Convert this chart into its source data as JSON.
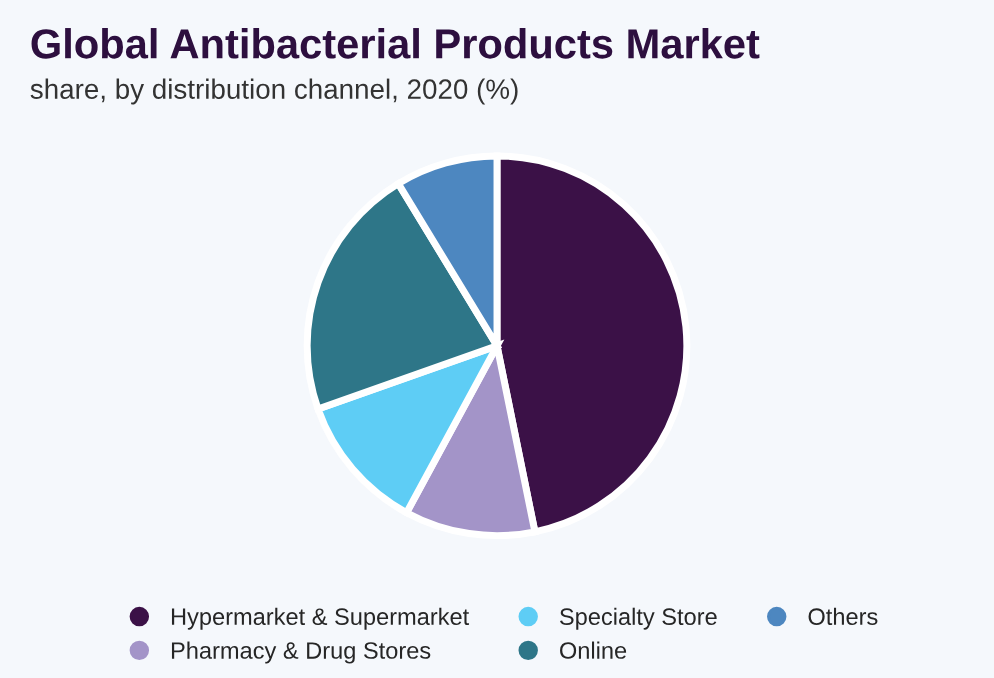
{
  "chart_data": {
    "type": "pie",
    "title": "Global Antibacterial Products Market",
    "subtitle": "share, by distribution channel, 2020 (%)",
    "categories": [
      "Hypermarket & Supermarket",
      "Pharmacy & Drug Stores",
      "Specialty Store",
      "Online",
      "Others"
    ],
    "values": [
      46.8,
      11.1,
      11.7,
      21.7,
      8.7
    ],
    "colors": [
      "#3b1147",
      "#a394c8",
      "#5ecdf5",
      "#2e7688",
      "#4d87c0"
    ],
    "legend": "bottom"
  }
}
